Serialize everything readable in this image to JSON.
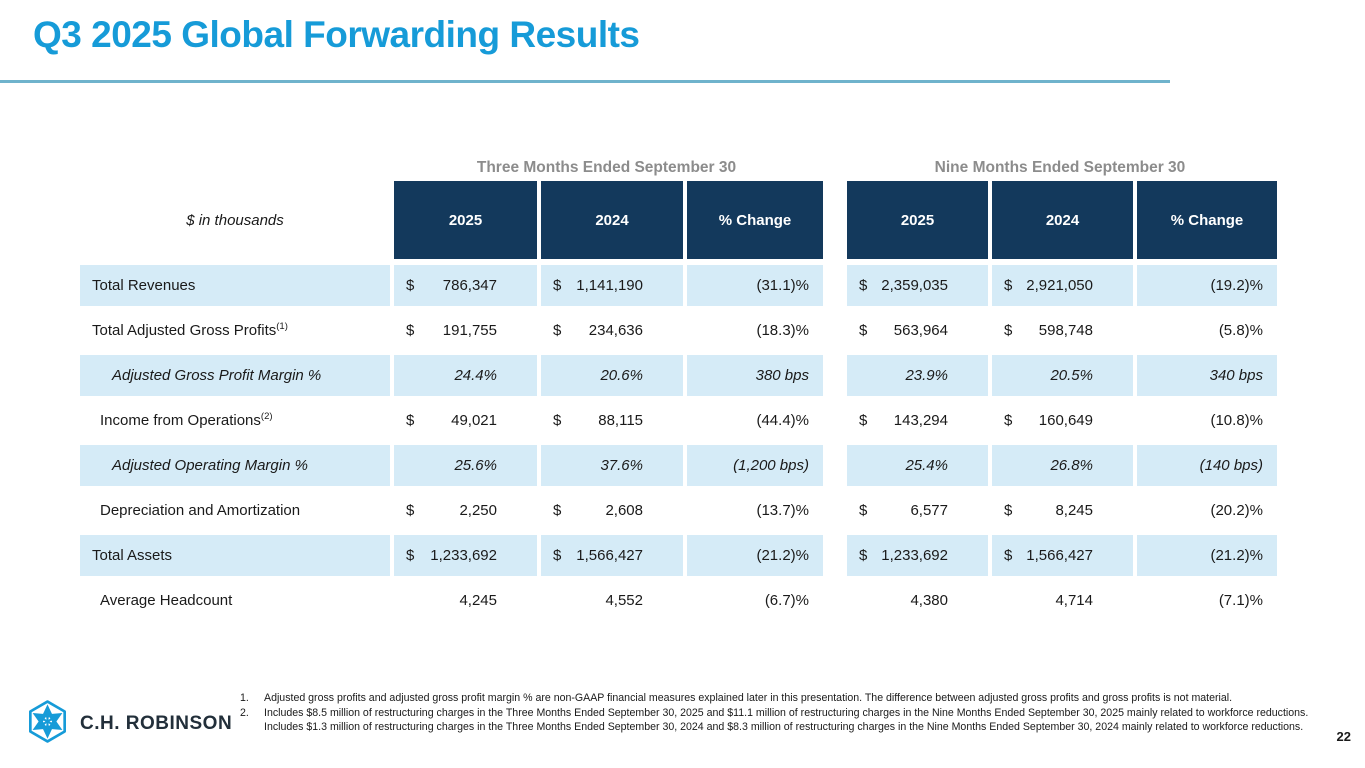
{
  "title": "Q3 2025 Global Forwarding Results",
  "page_number": "22",
  "colors": {
    "accent": "#169bd8",
    "header_navy": "#13395c",
    "row_shade_blue": "#d5ebf7",
    "title_rule": "#6fb3cc",
    "section_title_gray": "#8c8c8c"
  },
  "table": {
    "units_label": "$ in thousands",
    "sections": [
      {
        "title": "Three Months Ended September 30"
      },
      {
        "title": "Nine Months Ended September 30"
      }
    ],
    "column_headers": [
      "2025",
      "2024",
      "% Change",
      "2025",
      "2024",
      "% Change"
    ],
    "rows": [
      {
        "label": "Total Revenues",
        "sup": "",
        "indent": 0,
        "italic": false,
        "shaded": true,
        "cells": [
          {
            "sym": "$",
            "val": "786,347"
          },
          {
            "sym": "$",
            "val": "1,141,190"
          },
          {
            "sym": "",
            "val": "(31.1)%"
          },
          {
            "sym": "$",
            "val": "2,359,035"
          },
          {
            "sym": "$",
            "val": "2,921,050"
          },
          {
            "sym": "",
            "val": "(19.2)%"
          }
        ]
      },
      {
        "label": "Total Adjusted Gross Profits",
        "sup": "(1)",
        "indent": 0,
        "italic": false,
        "shaded": false,
        "cells": [
          {
            "sym": "$",
            "val": "191,755"
          },
          {
            "sym": "$",
            "val": "234,636"
          },
          {
            "sym": "",
            "val": "(18.3)%"
          },
          {
            "sym": "$",
            "val": "563,964"
          },
          {
            "sym": "$",
            "val": "598,748"
          },
          {
            "sym": "",
            "val": "(5.8)%"
          }
        ]
      },
      {
        "label": "Adjusted Gross Profit Margin %",
        "sup": "",
        "indent": 2,
        "italic": true,
        "shaded": true,
        "cells": [
          {
            "sym": "",
            "val": "24.4%"
          },
          {
            "sym": "",
            "val": "20.6%"
          },
          {
            "sym": "",
            "val": "380 bps"
          },
          {
            "sym": "",
            "val": "23.9%"
          },
          {
            "sym": "",
            "val": "20.5%"
          },
          {
            "sym": "",
            "val": "340 bps"
          }
        ]
      },
      {
        "label": "Income from Operations",
        "sup": "(2)",
        "indent": 1,
        "italic": false,
        "shaded": false,
        "cells": [
          {
            "sym": "$",
            "val": "49,021"
          },
          {
            "sym": "$",
            "val": "88,115"
          },
          {
            "sym": "",
            "val": "(44.4)%"
          },
          {
            "sym": "$",
            "val": "143,294"
          },
          {
            "sym": "$",
            "val": "160,649"
          },
          {
            "sym": "",
            "val": "(10.8)%"
          }
        ]
      },
      {
        "label": "Adjusted Operating Margin %",
        "sup": "",
        "indent": 2,
        "italic": true,
        "shaded": true,
        "cells": [
          {
            "sym": "",
            "val": "25.6%"
          },
          {
            "sym": "",
            "val": "37.6%"
          },
          {
            "sym": "",
            "val": "(1,200 bps)"
          },
          {
            "sym": "",
            "val": "25.4%"
          },
          {
            "sym": "",
            "val": "26.8%"
          },
          {
            "sym": "",
            "val": "(140 bps)"
          }
        ]
      },
      {
        "label": "Depreciation and Amortization",
        "sup": "",
        "indent": 1,
        "italic": false,
        "shaded": false,
        "cells": [
          {
            "sym": "$",
            "val": "2,250"
          },
          {
            "sym": "$",
            "val": "2,608"
          },
          {
            "sym": "",
            "val": "(13.7)%"
          },
          {
            "sym": "$",
            "val": "6,577"
          },
          {
            "sym": "$",
            "val": "8,245"
          },
          {
            "sym": "",
            "val": "(20.2)%"
          }
        ]
      },
      {
        "label": "Total Assets",
        "sup": "",
        "indent": 0,
        "italic": false,
        "shaded": true,
        "cells": [
          {
            "sym": "$",
            "val": "1,233,692"
          },
          {
            "sym": "$",
            "val": "1,566,427"
          },
          {
            "sym": "",
            "val": "(21.2)%"
          },
          {
            "sym": "$",
            "val": "1,233,692"
          },
          {
            "sym": "$",
            "val": "1,566,427"
          },
          {
            "sym": "",
            "val": "(21.2)%"
          }
        ]
      },
      {
        "label": "Average Headcount",
        "sup": "",
        "indent": 1,
        "italic": false,
        "shaded": false,
        "cells": [
          {
            "sym": "",
            "val": "4,245"
          },
          {
            "sym": "",
            "val": "4,552"
          },
          {
            "sym": "",
            "val": "(6.7)%"
          },
          {
            "sym": "",
            "val": "4,380"
          },
          {
            "sym": "",
            "val": "4,714"
          },
          {
            "sym": "",
            "val": "(7.1)%"
          }
        ]
      }
    ]
  },
  "footnotes": [
    {
      "num": "1.",
      "text": "Adjusted gross profits and adjusted gross profit margin % are non-GAAP financial measures explained later in this presentation. The difference between adjusted gross profits and gross profits is not material."
    },
    {
      "num": "2.",
      "text": "Includes $8.5 million of restructuring charges in the Three Months Ended September 30, 2025 and $11.1 million of restructuring charges in the Nine Months Ended September 30, 2025 mainly related to workforce reductions. Includes $1.3 million of restructuring charges in the Three Months Ended September 30, 2024 and $8.3 million of restructuring charges in the Nine Months Ended September 30, 2024 mainly related to workforce reductions."
    }
  ],
  "logo": {
    "company": "C.H. ROBINSON"
  }
}
